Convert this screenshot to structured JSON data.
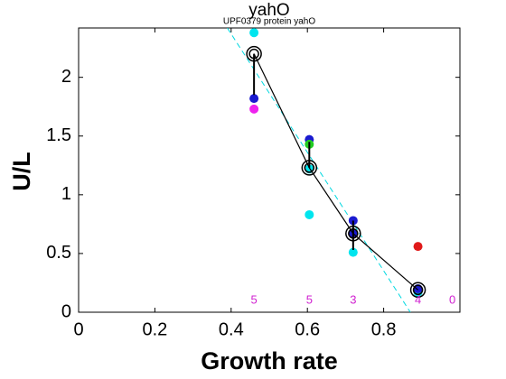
{
  "chart_data": {
    "type": "scatter",
    "title": "yahO",
    "subtitle": "UPF0379 protein yahO",
    "xlabel": "Growth rate",
    "ylabel": "U/L",
    "xlim": [
      0,
      1
    ],
    "ylim": [
      0,
      2.42
    ],
    "xticks": [
      0,
      0.2,
      0.4,
      0.6,
      0.8
    ],
    "yticks": [
      0,
      0.5,
      1,
      1.5,
      2
    ],
    "grid": false,
    "fit": {
      "color": "#00d8e0",
      "x": [
        0.39,
        0.87
      ],
      "y": [
        2.42,
        0
      ]
    },
    "mean": {
      "color": "#000000",
      "x": [
        0.46,
        0.605,
        0.72,
        0.89
      ],
      "y": [
        2.2,
        1.23,
        0.67,
        0.19
      ],
      "err_low": [
        1.85,
        1.23,
        0.53,
        0.19
      ],
      "err_high": [
        2.2,
        1.45,
        0.78,
        0.19
      ]
    },
    "series": [
      {
        "color": "#00e5ee",
        "x": [
          0.46,
          0.605,
          0.605,
          0.72,
          0.89
        ],
        "y": [
          2.38,
          0.83,
          1.22,
          0.51,
          0.17
        ]
      },
      {
        "color": "#1a1ad0",
        "x": [
          0.46,
          0.605,
          0.72,
          0.72,
          0.89
        ],
        "y": [
          1.82,
          1.47,
          0.78,
          0.67,
          0.2
        ]
      },
      {
        "color": "#ee22ee",
        "x": [
          0.46
        ],
        "y": [
          1.73
        ]
      },
      {
        "color": "#22cc22",
        "x": [
          0.605
        ],
        "y": [
          1.43
        ]
      },
      {
        "color": "#e01a1a",
        "x": [
          0.89
        ],
        "y": [
          0.56
        ]
      }
    ],
    "annotation_color": "#d020d0",
    "annotations": [
      {
        "x": 0.46,
        "y": 0.1,
        "text": "5"
      },
      {
        "x": 0.605,
        "y": 0.1,
        "text": "5"
      },
      {
        "x": 0.72,
        "y": 0.1,
        "text": "3"
      },
      {
        "x": 0.89,
        "y": 0.1,
        "text": "4"
      },
      {
        "x": 0.98,
        "y": 0.1,
        "text": "0"
      }
    ]
  }
}
